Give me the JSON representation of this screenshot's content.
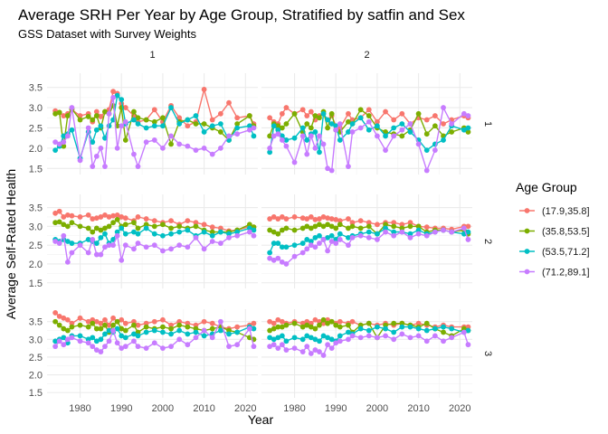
{
  "chart_data": {
    "type": "line",
    "title": "Average SRH Per Year by Age Group, Stratified by satfin and Sex",
    "subtitle": "GSS Dataset with Survey Weights",
    "xlabel": "Year",
    "ylabel": "Average Self-Rated Health",
    "legend_title": "Age Group",
    "legend_position": "right",
    "grid": true,
    "xlim": [
      1972,
      2023
    ],
    "ylim": [
      1.35,
      3.85
    ],
    "x_ticks": [
      "1980",
      "1990",
      "2000",
      "2010",
      "2020"
    ],
    "x_tick_values": [
      1980,
      1990,
      2000,
      2010,
      2020
    ],
    "y_ticks": [
      "1.5",
      "2.0",
      "2.5",
      "3.0",
      "3.5"
    ],
    "y_tick_values": [
      1.5,
      2.0,
      2.5,
      3.0,
      3.5
    ],
    "col_facets": [
      "1",
      "2"
    ],
    "row_facets": [
      "1",
      "2",
      "3"
    ],
    "series_names": [
      "(17.9,35.8]",
      "(35.8,53.5]",
      "(53.5,71.2]",
      "(71.2,89.1]"
    ],
    "colors": [
      "#F8766D",
      "#7CAE00",
      "#00BFC4",
      "#C77CFF"
    ],
    "years": [
      1974,
      1975,
      1976,
      1977,
      1978,
      1980,
      1982,
      1983,
      1984,
      1985,
      1986,
      1987,
      1988,
      1989,
      1990,
      1991,
      1993,
      1994,
      1996,
      1998,
      2000,
      2002,
      2004,
      2006,
      2008,
      2010,
      2012,
      2014,
      2016,
      2018,
      2021,
      2022
    ],
    "panels": [
      {
        "sex": "1",
        "satfin": "1",
        "series": [
          [
            2.92,
            2.88,
            2.8,
            2.85,
            2.95,
            2.8,
            2.85,
            2.65,
            2.9,
            2.78,
            2.9,
            2.95,
            3.4,
            3.35,
            3.1,
            3.0,
            2.8,
            2.65,
            2.7,
            2.95,
            2.65,
            3.05,
            2.75,
            2.55,
            2.65,
            3.45,
            2.7,
            2.85,
            3.12,
            2.75,
            2.8,
            2.6
          ],
          [
            2.85,
            2.88,
            2.05,
            2.8,
            2.97,
            2.7,
            2.78,
            2.7,
            2.8,
            2.5,
            2.9,
            2.85,
            3.05,
            2.55,
            3.0,
            2.2,
            2.9,
            2.75,
            2.7,
            2.65,
            2.75,
            2.1,
            2.65,
            2.7,
            2.6,
            2.6,
            2.5,
            2.4,
            2.2,
            2.6,
            2.8,
            2.55
          ],
          [
            1.95,
            2.05,
            2.3,
            2.35,
            2.45,
            1.75,
            2.4,
            2.15,
            2.45,
            2.55,
            2.25,
            2.55,
            2.7,
            3.3,
            3.2,
            2.6,
            2.7,
            2.6,
            2.5,
            2.55,
            2.55,
            3.0,
            2.6,
            2.7,
            2.8,
            2.4,
            2.55,
            2.6,
            2.2,
            2.5,
            2.55,
            2.3
          ],
          [
            2.15,
            2.1,
            2.15,
            2.3,
            3.0,
            1.7,
            2.5,
            1.55,
            1.8,
            2.0,
            1.55,
            2.85,
            3.25,
            2.0,
            2.55,
            2.65,
            1.85,
            1.55,
            2.15,
            2.2,
            2.0,
            2.3,
            2.1,
            2.05,
            1.95,
            2.0,
            1.85,
            2.0,
            2.3,
            2.35,
            2.45,
            2.5
          ]
        ]
      },
      {
        "sex": "2",
        "satfin": "1",
        "series": [
          [
            2.75,
            2.65,
            2.6,
            2.85,
            3.0,
            2.85,
            2.95,
            2.8,
            2.9,
            2.7,
            2.8,
            2.85,
            2.7,
            2.8,
            2.55,
            2.5,
            2.85,
            2.7,
            2.75,
            2.95,
            2.65,
            2.9,
            2.7,
            2.85,
            2.6,
            2.75,
            2.7,
            2.8,
            2.6,
            2.7,
            2.8,
            2.75
          ],
          [
            2.3,
            2.6,
            2.55,
            2.5,
            2.6,
            2.85,
            2.4,
            2.6,
            2.5,
            2.8,
            2.75,
            2.9,
            2.5,
            2.85,
            2.45,
            2.4,
            2.65,
            2.6,
            2.95,
            2.8,
            2.5,
            2.4,
            2.35,
            2.3,
            2.45,
            2.85,
            2.35,
            2.55,
            2.3,
            2.4,
            2.5,
            2.4
          ],
          [
            1.9,
            2.55,
            2.45,
            2.3,
            2.2,
            2.25,
            2.5,
            2.2,
            2.35,
            2.4,
            1.9,
            2.85,
            2.7,
            2.6,
            2.55,
            2.2,
            2.4,
            2.6,
            2.75,
            2.45,
            2.55,
            2.3,
            2.5,
            2.6,
            2.4,
            2.2,
            1.95,
            2.1,
            2.2,
            2.55,
            2.45,
            2.5
          ],
          [
            2.0,
            2.3,
            2.35,
            2.2,
            2.05,
            1.65,
            2.3,
            1.85,
            2.3,
            2.0,
            2.3,
            2.1,
            1.5,
            1.45,
            2.45,
            2.6,
            1.55,
            2.4,
            2.5,
            2.65,
            2.3,
            1.95,
            2.3,
            2.45,
            2.6,
            2.1,
            1.45,
            1.95,
            3.0,
            2.6,
            2.85,
            2.8
          ]
        ]
      },
      {
        "sex": "1",
        "satfin": "2",
        "series": [
          [
            3.35,
            3.4,
            3.25,
            3.3,
            3.28,
            3.25,
            3.3,
            3.2,
            3.22,
            3.25,
            3.3,
            3.25,
            3.28,
            3.3,
            3.25,
            3.22,
            3.15,
            3.25,
            3.2,
            3.15,
            3.1,
            3.15,
            3.05,
            3.15,
            3.1,
            3.05,
            2.98,
            2.95,
            2.88,
            2.9,
            3.0,
            2.98
          ],
          [
            3.1,
            3.12,
            3.05,
            3.0,
            3.1,
            3.0,
            2.95,
            2.85,
            2.95,
            2.9,
            2.95,
            3.0,
            3.1,
            3.18,
            3.0,
            3.05,
            3.1,
            2.95,
            3.05,
            3.0,
            3.05,
            2.95,
            3.0,
            2.95,
            3.0,
            2.9,
            2.85,
            2.85,
            2.85,
            2.9,
            3.05,
            2.98
          ],
          [
            2.65,
            2.6,
            2.65,
            2.6,
            2.55,
            2.55,
            2.65,
            2.6,
            2.55,
            2.7,
            2.8,
            2.55,
            2.65,
            2.85,
            2.95,
            2.8,
            2.85,
            2.8,
            2.95,
            2.8,
            2.75,
            2.8,
            2.85,
            2.9,
            2.75,
            2.85,
            2.75,
            2.85,
            2.8,
            2.85,
            2.95,
            2.9
          ],
          [
            2.6,
            2.55,
            2.75,
            2.05,
            2.3,
            2.5,
            2.3,
            2.65,
            2.25,
            2.25,
            2.45,
            2.5,
            2.5,
            2.75,
            2.1,
            2.5,
            2.4,
            2.55,
            2.45,
            2.5,
            2.35,
            2.4,
            2.5,
            2.45,
            2.7,
            2.4,
            2.6,
            2.55,
            2.7,
            2.75,
            2.85,
            2.75
          ]
        ]
      },
      {
        "sex": "2",
        "satfin": "2",
        "series": [
          [
            3.2,
            3.25,
            3.2,
            3.25,
            3.2,
            3.25,
            3.22,
            3.2,
            3.25,
            3.18,
            3.2,
            3.25,
            3.22,
            3.2,
            3.18,
            3.15,
            3.2,
            3.1,
            3.15,
            3.1,
            3.05,
            3.1,
            3.1,
            3.05,
            3.1,
            3.0,
            2.98,
            2.95,
            2.95,
            2.92,
            3.0,
            3.0
          ],
          [
            2.9,
            2.85,
            2.8,
            2.9,
            2.95,
            2.9,
            2.95,
            3.0,
            2.95,
            3.0,
            3.05,
            3.0,
            3.05,
            3.0,
            2.95,
            3.05,
            2.95,
            3.0,
            2.95,
            3.0,
            2.8,
            3.05,
            3.0,
            2.95,
            3.0,
            3.0,
            2.85,
            2.9,
            2.9,
            2.85,
            2.9,
            2.8
          ],
          [
            2.3,
            2.55,
            2.55,
            2.45,
            2.45,
            2.5,
            2.55,
            2.65,
            2.6,
            2.7,
            2.75,
            2.65,
            2.7,
            2.75,
            2.65,
            2.8,
            2.7,
            2.75,
            2.8,
            2.85,
            2.8,
            2.95,
            2.85,
            2.85,
            2.8,
            2.9,
            2.8,
            2.85,
            2.9,
            2.85,
            2.8,
            2.85
          ],
          [
            2.15,
            2.1,
            2.15,
            2.05,
            2.0,
            2.2,
            2.3,
            2.4,
            2.5,
            2.45,
            2.55,
            2.65,
            2.35,
            2.6,
            2.55,
            2.65,
            2.5,
            2.7,
            2.75,
            2.7,
            2.65,
            2.85,
            2.75,
            2.85,
            2.7,
            2.8,
            2.75,
            2.85,
            2.9,
            2.85,
            2.95,
            2.65
          ]
        ]
      },
      {
        "sex": "1",
        "satfin": "3",
        "series": [
          [
            3.75,
            3.65,
            3.6,
            3.55,
            3.45,
            3.6,
            3.5,
            3.55,
            3.5,
            3.45,
            3.55,
            3.4,
            3.6,
            3.5,
            3.55,
            3.45,
            3.5,
            3.4,
            3.45,
            3.5,
            3.55,
            3.4,
            3.5,
            3.45,
            3.4,
            3.5,
            3.45,
            3.35,
            3.3,
            3.35,
            3.4,
            3.45
          ],
          [
            3.5,
            3.4,
            3.3,
            3.25,
            3.35,
            3.4,
            3.35,
            3.45,
            3.3,
            3.3,
            3.4,
            3.2,
            3.4,
            3.5,
            3.3,
            3.25,
            3.4,
            3.2,
            3.35,
            3.3,
            3.35,
            3.3,
            3.4,
            3.35,
            3.3,
            3.25,
            3.3,
            3.35,
            3.25,
            3.2,
            3.05,
            3.0
          ],
          [
            2.95,
            3.0,
            3.05,
            2.9,
            3.1,
            3.1,
            3.0,
            3.05,
            2.95,
            3.0,
            3.15,
            3.25,
            3.2,
            3.3,
            3.1,
            3.05,
            3.15,
            3.1,
            3.2,
            3.25,
            3.2,
            3.15,
            3.25,
            3.15,
            3.2,
            3.1,
            3.15,
            3.25,
            3.15,
            3.2,
            3.35,
            3.3
          ],
          [
            2.8,
            2.95,
            2.85,
            3.0,
            3.05,
            2.95,
            2.9,
            2.8,
            2.7,
            2.65,
            2.8,
            2.95,
            3.25,
            2.9,
            2.75,
            2.8,
            2.95,
            2.8,
            2.75,
            2.9,
            2.75,
            2.8,
            3.0,
            2.85,
            3.05,
            3.25,
            3.05,
            3.5,
            2.8,
            2.85,
            3.3,
            2.8
          ]
        ]
      },
      {
        "sex": "2",
        "satfin": "3",
        "series": [
          [
            3.5,
            3.45,
            3.55,
            3.5,
            3.45,
            3.5,
            3.45,
            3.5,
            3.45,
            3.55,
            3.5,
            3.45,
            3.55,
            3.5,
            3.45,
            3.5,
            3.45,
            3.5,
            3.4,
            3.45,
            3.4,
            3.45,
            3.4,
            3.45,
            3.4,
            3.45,
            3.4,
            3.35,
            3.4,
            3.35,
            3.35,
            3.35
          ],
          [
            3.25,
            3.3,
            3.35,
            3.35,
            3.4,
            3.45,
            3.35,
            3.4,
            3.35,
            3.3,
            3.4,
            3.55,
            3.45,
            3.5,
            3.4,
            3.35,
            3.4,
            3.2,
            3.4,
            3.45,
            3.05,
            3.4,
            3.45,
            3.45,
            3.4,
            3.35,
            3.45,
            3.3,
            3.2,
            3.1,
            3.3,
            3.25
          ],
          [
            3.05,
            3.0,
            3.05,
            3.1,
            2.95,
            3.05,
            3.0,
            3.1,
            3.05,
            3.0,
            2.95,
            3.1,
            3.05,
            3.0,
            2.95,
            3.1,
            3.2,
            3.15,
            3.3,
            3.25,
            3.35,
            3.3,
            3.2,
            3.35,
            3.35,
            3.3,
            3.25,
            3.3,
            3.35,
            3.3,
            3.2,
            3.25
          ],
          [
            2.8,
            2.85,
            2.75,
            2.85,
            2.7,
            2.75,
            2.65,
            2.8,
            2.6,
            2.7,
            2.65,
            2.55,
            2.85,
            2.75,
            2.9,
            2.95,
            3.0,
            3.1,
            3.05,
            3.1,
            3.05,
            3.1,
            3.0,
            3.15,
            3.05,
            3.1,
            2.95,
            3.1,
            2.95,
            3.05,
            3.2,
            2.85
          ]
        ]
      }
    ]
  }
}
